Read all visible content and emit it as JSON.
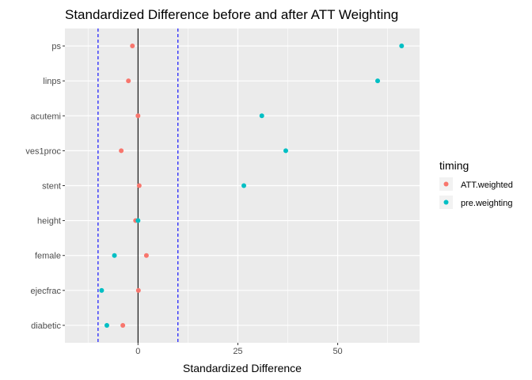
{
  "chart_data": {
    "type": "scatter",
    "title": "Standardized Difference before and after ATT Weighting",
    "xlabel": "Standardized Difference",
    "ylabel": "",
    "xlim": [
      -18.3,
      70.5
    ],
    "x_ticks": [
      0,
      25,
      50
    ],
    "x_tick_labels": [
      "0",
      "25",
      "50"
    ],
    "categories": [
      "ps",
      "linps",
      "acutemi",
      "ves1proc",
      "stent",
      "height",
      "female",
      "ejecfrac",
      "diabetic"
    ],
    "series": [
      {
        "name": "ATT.weighted",
        "color": "#F8766D",
        "values": [
          -1.4,
          -2.4,
          0.0,
          -4.2,
          0.3,
          -0.6,
          2.1,
          0.1,
          -3.8
        ]
      },
      {
        "name": "pre.weighting",
        "color": "#00BFC4",
        "values": [
          66.0,
          60.0,
          31.0,
          37.0,
          26.5,
          0.0,
          -5.9,
          -9.1,
          -7.8
        ]
      }
    ],
    "reference_lines": [
      {
        "x": 0,
        "style": "solid",
        "color": "#000000"
      },
      {
        "x": -10,
        "style": "dashed",
        "color": "#0000FF"
      },
      {
        "x": 10,
        "style": "dashed",
        "color": "#0000FF"
      }
    ],
    "legend": {
      "title": "timing",
      "position": "right",
      "entries": [
        "ATT.weighted",
        "pre.weighting"
      ]
    },
    "grid": true,
    "panel_background": "#EBEBEB"
  }
}
